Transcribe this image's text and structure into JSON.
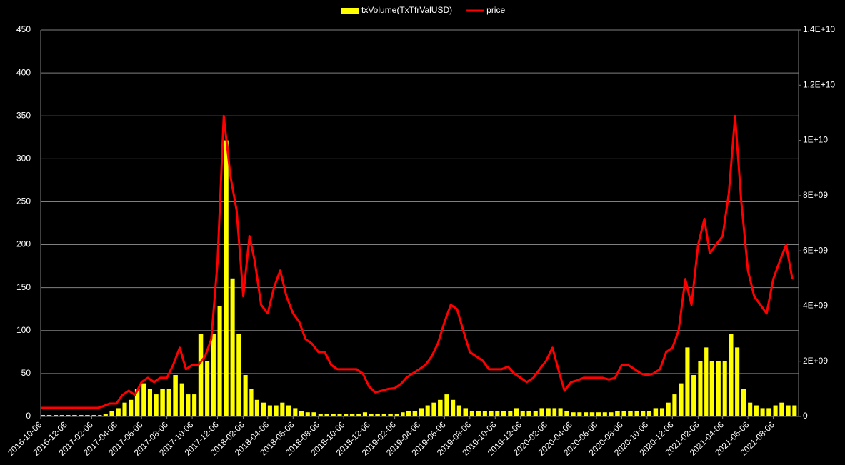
{
  "chart_data": {
    "type": "bar-line",
    "x": [
      "2016-10-06",
      "2016-10-21",
      "2016-11-06",
      "2016-11-21",
      "2016-12-06",
      "2016-12-21",
      "2017-01-06",
      "2017-01-21",
      "2017-02-06",
      "2017-02-21",
      "2017-03-06",
      "2017-03-21",
      "2017-04-06",
      "2017-04-21",
      "2017-05-06",
      "2017-05-21",
      "2017-06-06",
      "2017-06-21",
      "2017-07-06",
      "2017-07-21",
      "2017-08-06",
      "2017-08-21",
      "2017-09-06",
      "2017-09-21",
      "2017-10-06",
      "2017-10-21",
      "2017-11-06",
      "2017-11-21",
      "2017-12-06",
      "2017-12-21",
      "2018-01-06",
      "2018-01-21",
      "2018-02-06",
      "2018-02-21",
      "2018-03-06",
      "2018-03-21",
      "2018-04-06",
      "2018-04-21",
      "2018-05-06",
      "2018-05-21",
      "2018-06-06",
      "2018-06-21",
      "2018-07-06",
      "2018-07-21",
      "2018-08-06",
      "2018-08-21",
      "2018-09-06",
      "2018-09-21",
      "2018-10-06",
      "2018-10-21",
      "2018-11-06",
      "2018-11-21",
      "2018-12-06",
      "2018-12-21",
      "2019-01-06",
      "2019-01-21",
      "2019-02-06",
      "2019-02-21",
      "2019-03-06",
      "2019-03-21",
      "2019-04-06",
      "2019-04-21",
      "2019-05-06",
      "2019-05-21",
      "2019-06-06",
      "2019-06-21",
      "2019-07-06",
      "2019-07-21",
      "2019-08-06",
      "2019-08-21",
      "2019-09-06",
      "2019-09-21",
      "2019-10-06",
      "2019-10-21",
      "2019-11-06",
      "2019-11-21",
      "2019-12-06",
      "2019-12-21",
      "2020-01-06",
      "2020-01-21",
      "2020-02-06",
      "2020-02-21",
      "2020-03-06",
      "2020-03-21",
      "2020-04-06",
      "2020-04-21",
      "2020-05-06",
      "2020-05-21",
      "2020-06-06",
      "2020-06-21",
      "2020-07-06",
      "2020-07-21",
      "2020-08-06",
      "2020-08-21",
      "2020-09-06",
      "2020-09-21",
      "2020-10-06",
      "2020-10-21",
      "2020-11-06",
      "2020-11-21",
      "2020-12-06",
      "2020-12-21",
      "2021-01-06",
      "2021-01-21",
      "2021-02-06",
      "2021-02-21",
      "2021-03-06",
      "2021-03-21",
      "2021-04-06",
      "2021-04-21",
      "2021-05-06",
      "2021-05-21",
      "2021-06-06",
      "2021-06-21",
      "2021-07-06",
      "2021-07-21",
      "2021-08-06",
      "2021-08-21",
      "2021-09-06",
      "2021-09-21"
    ],
    "xlim": [
      "2016-10-06",
      "2021-10-06"
    ],
    "xticks": [
      "2016-10-06",
      "2016-12-06",
      "2017-02-06",
      "2017-04-06",
      "2017-06-06",
      "2017-08-06",
      "2017-10-06",
      "2017-12-06",
      "2018-02-06",
      "2018-04-06",
      "2018-06-06",
      "2018-08-06",
      "2018-10-06",
      "2018-12-06",
      "2019-02-06",
      "2019-04-06",
      "2019-06-06",
      "2019-08-06",
      "2019-10-06",
      "2019-12-06",
      "2020-02-06",
      "2020-04-06",
      "2020-06-06",
      "2020-08-06",
      "2020-10-06",
      "2020-12-06",
      "2021-02-06",
      "2021-04-06",
      "2021-06-06",
      "2021-08-06"
    ],
    "ylim": [
      0,
      450
    ],
    "yticks": [
      0,
      50,
      100,
      150,
      200,
      250,
      300,
      350,
      400,
      450
    ],
    "y2lim": [
      0,
      14000000000
    ],
    "y2ticks": [
      0,
      {
        "value": 2000000000,
        "label": "2E+09"
      },
      {
        "value": 4000000000,
        "label": "4E+09"
      },
      {
        "value": 6000000000,
        "label": "6E+09"
      },
      {
        "value": 8000000000,
        "label": "8E+09"
      },
      {
        "value": 10000000000,
        "label": "1E+10"
      },
      {
        "value": 12000000000,
        "label": "1.2E+10"
      },
      {
        "value": 14000000000,
        "label": "1.4E+10"
      }
    ],
    "grid": true,
    "legend": "top",
    "series": [
      {
        "name": "txVolume(TxTfrValUSD)",
        "color": "#ffff00",
        "kind": "bar",
        "axis": "y2",
        "values": [
          50000000.0,
          50000000.0,
          50000000.0,
          50000000.0,
          50000000.0,
          50000000.0,
          50000000.0,
          50000000.0,
          50000000.0,
          50000000.0,
          100000000.0,
          200000000.0,
          300000000.0,
          500000000.0,
          600000000.0,
          1000000000.0,
          1200000000.0,
          1000000000.0,
          800000000.0,
          1000000000.0,
          1000000000.0,
          1500000000.0,
          1200000000.0,
          800000000.0,
          800000000.0,
          3000000000.0,
          2000000000.0,
          3000000000.0,
          4000000000.0,
          10000000000.0,
          5000000000.0,
          3000000000.0,
          1500000000.0,
          1000000000.0,
          600000000.0,
          500000000.0,
          400000000.0,
          400000000.0,
          500000000.0,
          400000000.0,
          300000000.0,
          200000000.0,
          150000000.0,
          150000000.0,
          100000000.0,
          100000000.0,
          100000000.0,
          100000000.0,
          80000000.0,
          80000000.0,
          100000000.0,
          150000000.0,
          100000000.0,
          100000000.0,
          100000000.0,
          100000000.0,
          100000000.0,
          150000000.0,
          200000000.0,
          200000000.0,
          300000000.0,
          400000000.0,
          500000000.0,
          600000000.0,
          800000000.0,
          600000000.0,
          400000000.0,
          300000000.0,
          200000000.0,
          200000000.0,
          200000000.0,
          200000000.0,
          200000000.0,
          200000000.0,
          200000000.0,
          300000000.0,
          200000000.0,
          200000000.0,
          200000000.0,
          300000000.0,
          300000000.0,
          300000000.0,
          300000000.0,
          200000000.0,
          150000000.0,
          150000000.0,
          150000000.0,
          150000000.0,
          150000000.0,
          150000000.0,
          150000000.0,
          200000000.0,
          200000000.0,
          200000000.0,
          200000000.0,
          200000000.0,
          200000000.0,
          300000000.0,
          300000000.0,
          500000000.0,
          800000000.0,
          1200000000.0,
          2500000000.0,
          1500000000.0,
          2000000000.0,
          2500000000.0,
          2000000000.0,
          2000000000.0,
          2000000000.0,
          3000000000.0,
          2500000000.0,
          1000000000.0,
          500000000.0,
          400000000.0,
          300000000.0,
          300000000.0,
          400000000.0,
          500000000.0,
          400000000.0,
          400000000.0
        ]
      },
      {
        "name": "price",
        "color": "#ff0000",
        "kind": "line",
        "axis": "y",
        "values": [
          10,
          10,
          10,
          10,
          10,
          10,
          10,
          10,
          10,
          10,
          12,
          15,
          15,
          25,
          30,
          25,
          40,
          45,
          40,
          45,
          45,
          60,
          80,
          55,
          60,
          60,
          70,
          90,
          180,
          350,
          280,
          240,
          140,
          210,
          180,
          130,
          120,
          150,
          170,
          140,
          120,
          110,
          90,
          85,
          75,
          75,
          60,
          55,
          55,
          55,
          55,
          50,
          35,
          28,
          30,
          32,
          33,
          38,
          45,
          50,
          55,
          60,
          70,
          85,
          110,
          130,
          125,
          100,
          75,
          70,
          65,
          55,
          55,
          55,
          58,
          50,
          45,
          40,
          45,
          55,
          65,
          80,
          55,
          30,
          40,
          42,
          45,
          45,
          45,
          45,
          43,
          45,
          60,
          60,
          55,
          50,
          48,
          50,
          55,
          75,
          80,
          100,
          160,
          130,
          200,
          230,
          190,
          200,
          210,
          260,
          350,
          250,
          170,
          140,
          130,
          120,
          160,
          180,
          200,
          160
        ]
      }
    ]
  }
}
